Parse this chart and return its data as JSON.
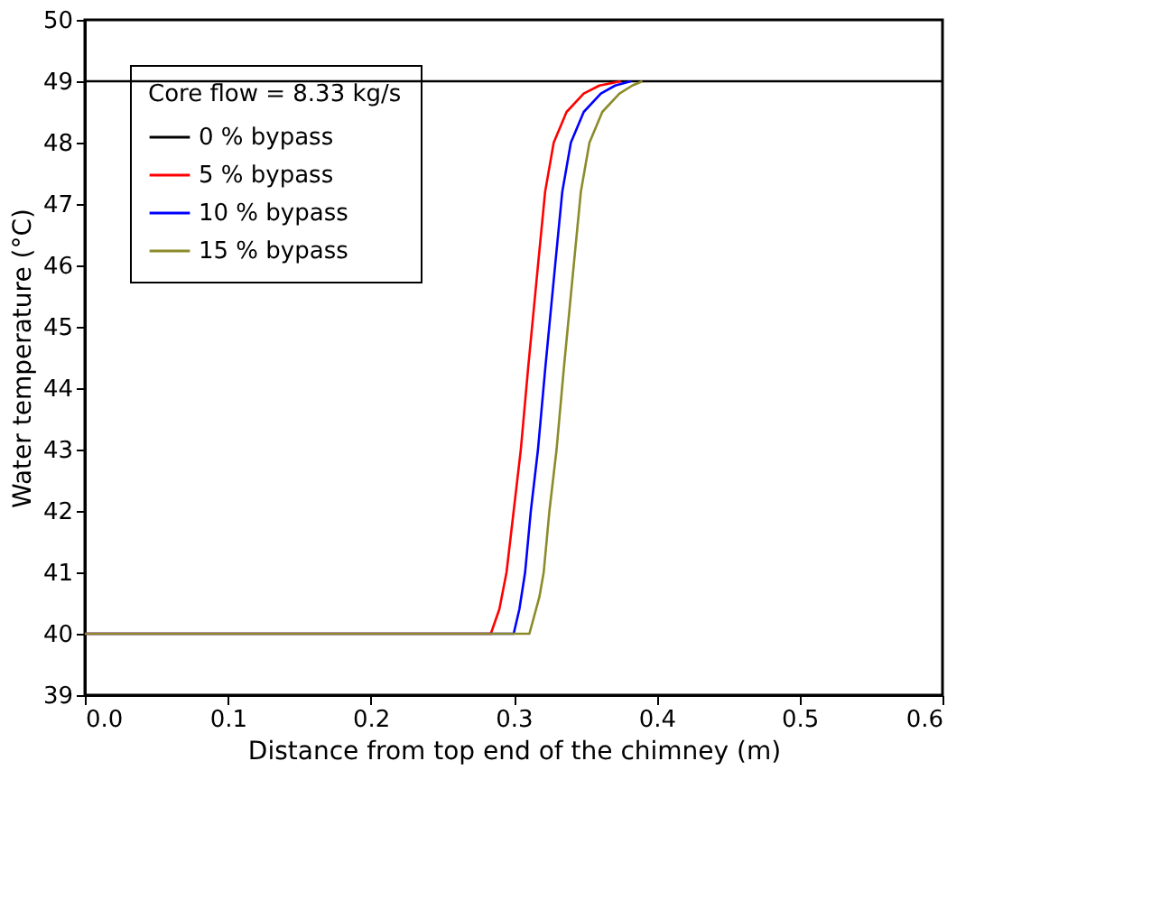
{
  "chart_data": {
    "type": "line",
    "xlabel": "Distance from top end of the chimney (m)",
    "ylabel": "Water temperature (°C)",
    "legend_title": "Core flow = 8.33 kg/s",
    "legend": "top left",
    "grid": false,
    "marker": "none",
    "line_style": "solid",
    "xlim": [
      0,
      0.6
    ],
    "xticks": [
      {
        "value": 0,
        "label": "0.0"
      },
      0.1,
      0.2,
      0.3,
      0.4,
      0.5,
      0.6
    ],
    "ylim": [
      39,
      50
    ],
    "yticks": [
      39,
      40,
      41,
      42,
      43,
      44,
      45,
      46,
      47,
      48,
      49,
      50
    ],
    "series": [
      {
        "name": "0 % bypass",
        "color": "#000000",
        "x": [
          0,
          0.6
        ],
        "values": [
          49,
          49
        ]
      },
      {
        "name": "5 % bypass",
        "color": "#ff0000",
        "x": [
          0,
          0.284,
          0.29,
          0.295,
          0.3,
          0.305,
          0.31,
          0.317,
          0.322,
          0.328,
          0.337,
          0.349,
          0.36,
          0.375
        ],
        "values": [
          40,
          40,
          40.4,
          41,
          42,
          43,
          44.3,
          46,
          47.2,
          48,
          48.5,
          48.8,
          48.93,
          49
        ]
      },
      {
        "name": "10 % bypass",
        "color": "#0000ff",
        "x": [
          0,
          0.3,
          0.304,
          0.308,
          0.312,
          0.317,
          0.322,
          0.329,
          0.334,
          0.34,
          0.349,
          0.361,
          0.371,
          0.382
        ],
        "values": [
          40,
          40,
          40.4,
          41,
          42,
          43,
          44.3,
          46,
          47.2,
          48,
          48.5,
          48.8,
          48.93,
          49
        ]
      },
      {
        "name": "15 % bypass",
        "color": "#8b8b2a",
        "x": [
          0,
          0.311,
          0.318,
          0.321,
          0.325,
          0.33,
          0.335,
          0.342,
          0.347,
          0.353,
          0.362,
          0.374,
          0.383,
          0.39
        ],
        "values": [
          40,
          40,
          40.6,
          41,
          42,
          43,
          44.3,
          46,
          47.2,
          48,
          48.5,
          48.8,
          48.93,
          49
        ]
      }
    ]
  }
}
